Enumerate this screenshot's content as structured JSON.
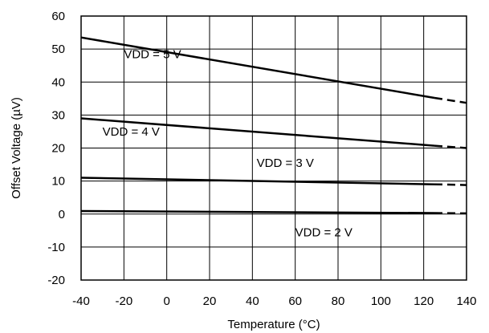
{
  "chart_data": {
    "type": "line",
    "xlabel": "Temperature (°C)",
    "ylabel": "Offset Voltage (µV)",
    "xlim": [
      -40,
      140
    ],
    "ylim": [
      -20,
      60
    ],
    "xticks": [
      "-40",
      "-20",
      "0",
      "20",
      "40",
      "60",
      "80",
      "100",
      "120",
      "140"
    ],
    "yticks": [
      "-20",
      "-10",
      "0",
      "10",
      "20",
      "30",
      "40",
      "50",
      "60"
    ],
    "grid": true,
    "legend": "inline labels",
    "series": [
      {
        "name": "VDD = 5 V",
        "x": [
          -40,
          125,
          140
        ],
        "y": [
          53.5,
          35.2,
          33.7
        ],
        "solid_until": 125,
        "label_at": [
          -20,
          48.5
        ]
      },
      {
        "name": "VDD = 4 V",
        "x": [
          -40,
          125,
          140
        ],
        "y": [
          29,
          20.7,
          20.0
        ],
        "solid_until": 125,
        "label_at": [
          -30,
          25
        ]
      },
      {
        "name": "VDD = 3 V",
        "x": [
          -40,
          125,
          140
        ],
        "y": [
          11,
          9.0,
          8.8
        ],
        "solid_until": 125,
        "label_at": [
          42,
          15.5
        ]
      },
      {
        "name": "VDD = 2 V",
        "x": [
          -40,
          125,
          140
        ],
        "y": [
          0.9,
          0.3,
          0.2
        ],
        "solid_until": 125,
        "label_at": [
          60,
          -5.5
        ]
      }
    ]
  }
}
